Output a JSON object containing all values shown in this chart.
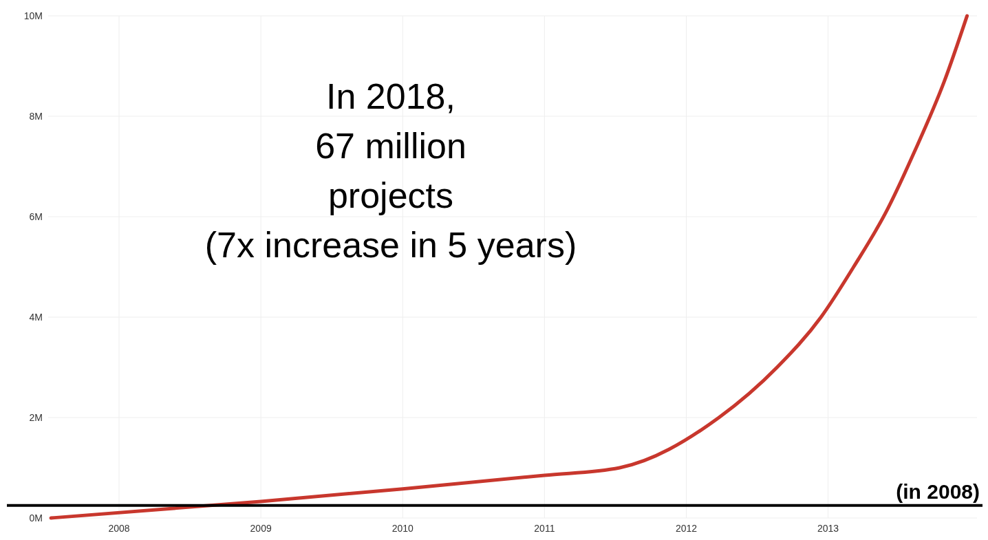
{
  "chart_data": {
    "type": "line",
    "x": [
      2007.52,
      2009.0,
      2010.0,
      2011.0,
      2011.53,
      2012.23,
      2012.64,
      2012.95,
      2013.18,
      2013.41,
      2013.61,
      2013.82,
      2013.98
    ],
    "series": [
      {
        "color": "#c8372d",
        "values": [
          0,
          0.33,
          0.58,
          0.85,
          1.0,
          2.0,
          3.0,
          4.0,
          5.0,
          6.1,
          7.3,
          8.7,
          10.0
        ]
      }
    ],
    "xlim": [
      2007.5,
      2014.05
    ],
    "xticks": [
      2008,
      2009,
      2010,
      2011,
      2012,
      2013
    ],
    "ylim": [
      0,
      10
    ],
    "yticks": [
      {
        "value": 0,
        "label": "0M"
      },
      {
        "value": 2,
        "label": "2M"
      },
      {
        "value": 4,
        "label": "4M"
      },
      {
        "value": 6,
        "label": "6M"
      },
      {
        "value": 8,
        "label": "8M"
      },
      {
        "value": 10,
        "label": "10M"
      }
    ],
    "grid": true,
    "ref_lines": [
      {
        "axis": "y",
        "value": 0.25,
        "label": "(in 2008)",
        "color": "#000000"
      }
    ],
    "annotations": [
      "In 2018,\n67 million\nprojects\n(7x increase in 5 years)"
    ]
  }
}
